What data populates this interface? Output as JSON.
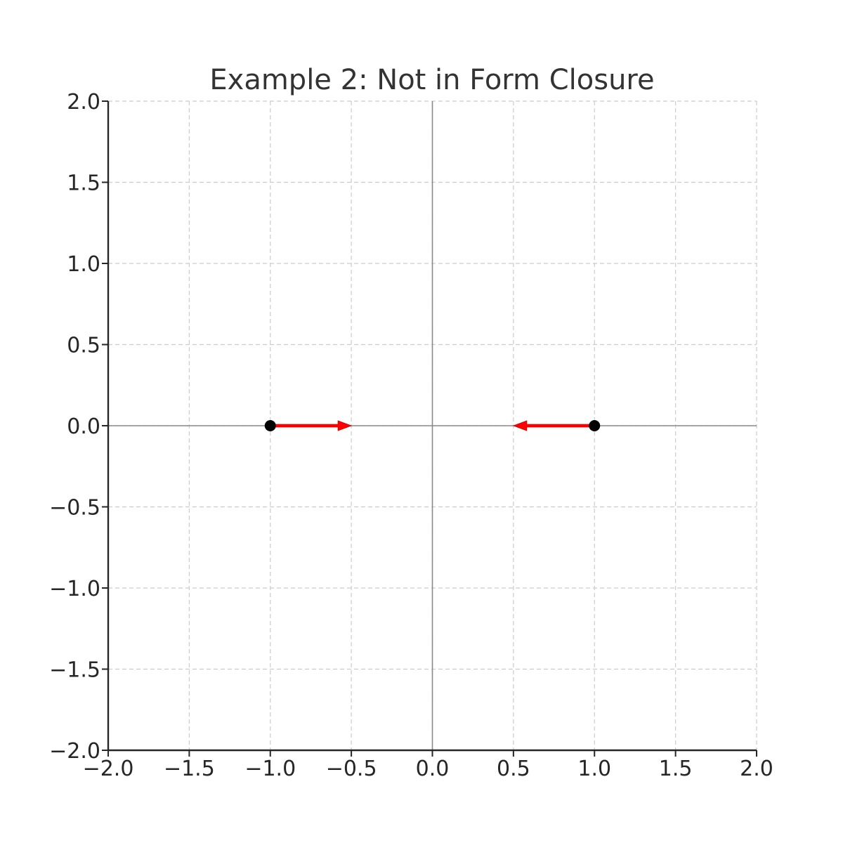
{
  "chart_data": {
    "type": "scatter",
    "title": "Example 2: Not in Form Closure",
    "xlabel": "",
    "ylabel": "",
    "xlim": [
      -2.0,
      2.0
    ],
    "ylim": [
      -2.0,
      2.0
    ],
    "x_ticks": [
      -2.0,
      -1.5,
      -1.0,
      -0.5,
      0.0,
      0.5,
      1.0,
      1.5,
      2.0
    ],
    "y_ticks": [
      -2.0,
      -1.5,
      -1.0,
      -0.5,
      0.0,
      0.5,
      1.0,
      1.5,
      2.0
    ],
    "x_tick_labels": [
      "−2.0",
      "−1.5",
      "−1.0",
      "−0.5",
      "0.0",
      "0.5",
      "1.0",
      "1.5",
      "2.0"
    ],
    "y_tick_labels": [
      "−2.0",
      "−1.5",
      "−1.0",
      "−0.5",
      "0.0",
      "0.5",
      "1.0",
      "1.5",
      "2.0"
    ],
    "grid": true,
    "grid_style": "dashed",
    "zero_lines": true,
    "points": [
      {
        "x": -1.0,
        "y": 0.0,
        "color": "#000000"
      },
      {
        "x": 1.0,
        "y": 0.0,
        "color": "#000000"
      }
    ],
    "arrows": [
      {
        "x": -1.0,
        "y": 0.0,
        "dx": 0.5,
        "dy": 0.0,
        "color": "#ff0000"
      },
      {
        "x": 1.0,
        "y": 0.0,
        "dx": -0.5,
        "dy": 0.0,
        "color": "#ff0000"
      }
    ]
  }
}
